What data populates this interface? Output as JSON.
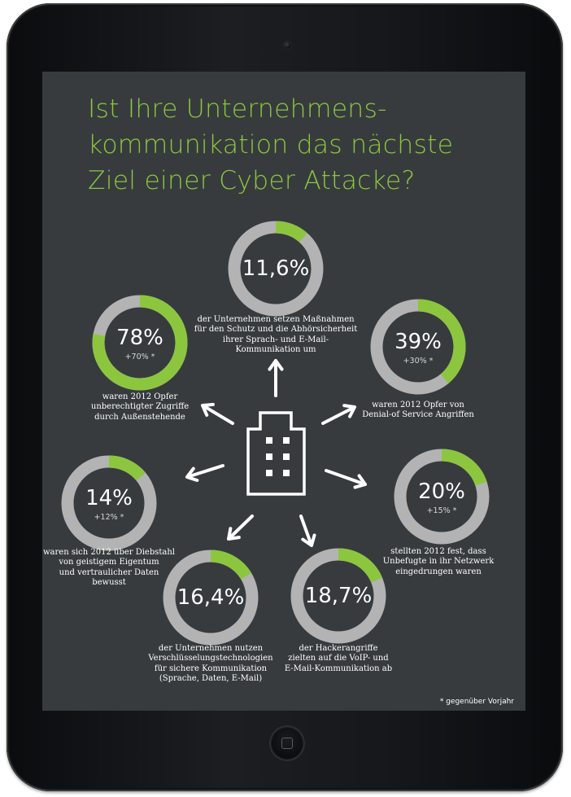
{
  "title": "Ist Ihre Unternehmens-\nkommunikation das nächste\nZiel einer Cyber Attacke?",
  "footnote": "* gegenüber Vorjahr",
  "colors": {
    "accent": "#8cc63f",
    "ring_track": "#b3b3b3",
    "screen_bg": "#373b3e",
    "text": "#ffffff"
  },
  "icons": {
    "center": "office-building-icon",
    "arrows": "arrow-icon"
  },
  "chart_data": {
    "type": "donut",
    "items": [
      {
        "id": "kommunikation-schutz",
        "value": 11.6,
        "label": "11,6%",
        "change": "",
        "caption": "der Unternehmen setzen Maßnahmen\nfür den Schutz und die Abhörsicherheit\nihrer Sprach- und E-Mail-\nKommunikation um"
      },
      {
        "id": "unberechtigte-zugriffe",
        "value": 78,
        "label": "78%",
        "change": "+70% *",
        "caption": "waren 2012 Opfer\nunberechtigter Zugriffe\ndurch Außenstehende"
      },
      {
        "id": "denial-of-service",
        "value": 39,
        "label": "39%",
        "change": "+30% *",
        "caption": "waren 2012 Opfer von\nDenial-of Service Angriffen"
      },
      {
        "id": "diebstahl-eigentum",
        "value": 14,
        "label": "14%",
        "change": "+12% *",
        "caption": "waren sich 2012 über Diebstahl\nvon geistigem Eigentum\nund vertraulicher Daten\nbewusst"
      },
      {
        "id": "netzwerk-eingedrungen",
        "value": 20,
        "label": "20%",
        "change": "+15% *",
        "caption": "stellten 2012 fest, dass\nUnbefugte in ihr Netzwerk\neingedrungen waren"
      },
      {
        "id": "verschluesselung",
        "value": 16.4,
        "label": "16,4%",
        "change": "",
        "caption": "der Unternehmen nutzen\nVerschlüsselungstechnologien\nfür sichere Kommunikation\n(Sprache, Daten, E-Mail)"
      },
      {
        "id": "hackerangriffe-voip",
        "value": 18.7,
        "label": "18,7%",
        "change": "",
        "caption": "der Hackerangriffe\nzielten auf die VoIP- und\nE-Mail-Kommunikation ab"
      }
    ]
  }
}
